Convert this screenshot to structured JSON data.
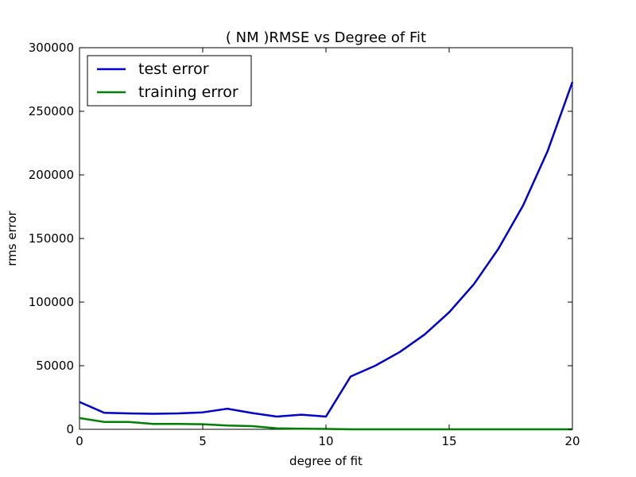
{
  "chart_data": {
    "type": "line",
    "title": "(  NM  )RMSE vs Degree of Fit",
    "xlabel": "degree of fit",
    "ylabel": "rms error",
    "xlim": [
      0,
      20
    ],
    "ylim": [
      0,
      300000
    ],
    "xticks": [
      0,
      5,
      10,
      15,
      20
    ],
    "yticks": [
      0,
      50000,
      100000,
      150000,
      200000,
      250000,
      300000
    ],
    "grid": false,
    "legend": "top-left",
    "x": [
      0,
      1,
      2,
      3,
      4,
      5,
      6,
      7,
      8,
      9,
      10,
      11,
      12,
      13,
      14,
      15,
      16,
      17,
      18,
      19,
      20
    ],
    "series": [
      {
        "name": "test error",
        "color": "#0000cc",
        "values": [
          21500,
          13000,
          12500,
          12200,
          12500,
          13300,
          16200,
          12800,
          10000,
          11500,
          10000,
          41500,
          50000,
          60800,
          74500,
          92000,
          114000,
          142000,
          176000,
          219000,
          273000
        ]
      },
      {
        "name": "training error",
        "color": "#007f00",
        "values": [
          8800,
          5800,
          5800,
          4200,
          4200,
          4000,
          3000,
          2500,
          800,
          500,
          300,
          0,
          0,
          0,
          0,
          0,
          0,
          0,
          0,
          0,
          0
        ]
      }
    ]
  }
}
